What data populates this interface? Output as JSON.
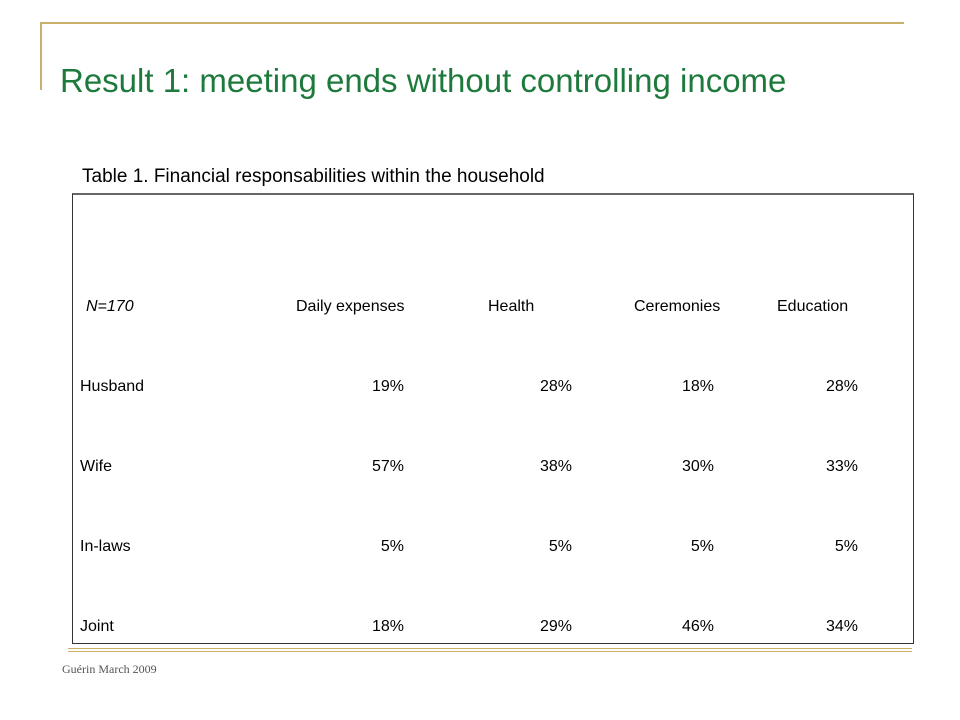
{
  "slide": {
    "title": "Result 1: meeting ends without controlling income",
    "footer": "Guérin March 2009"
  },
  "table": {
    "caption": "Table 1. Financial responsabilities within the household",
    "corner_label": "N=170",
    "columns": [
      "Daily expenses",
      "Health",
      "Ceremonies",
      "Education"
    ],
    "rows": [
      {
        "label": "Husband",
        "values": [
          "19%",
          "28%",
          "18%",
          "28%"
        ]
      },
      {
        "label": "Wife",
        "values": [
          "57%",
          "38%",
          "30%",
          "33%"
        ]
      },
      {
        "label": "In-laws",
        "values": [
          "5%",
          "5%",
          "5%",
          "5%"
        ]
      },
      {
        "label": "Joint",
        "values": [
          "18%",
          "29%",
          "46%",
          "34%"
        ]
      }
    ]
  },
  "colors": {
    "title": "#1e7a3c",
    "accent": "#c8b26a"
  }
}
